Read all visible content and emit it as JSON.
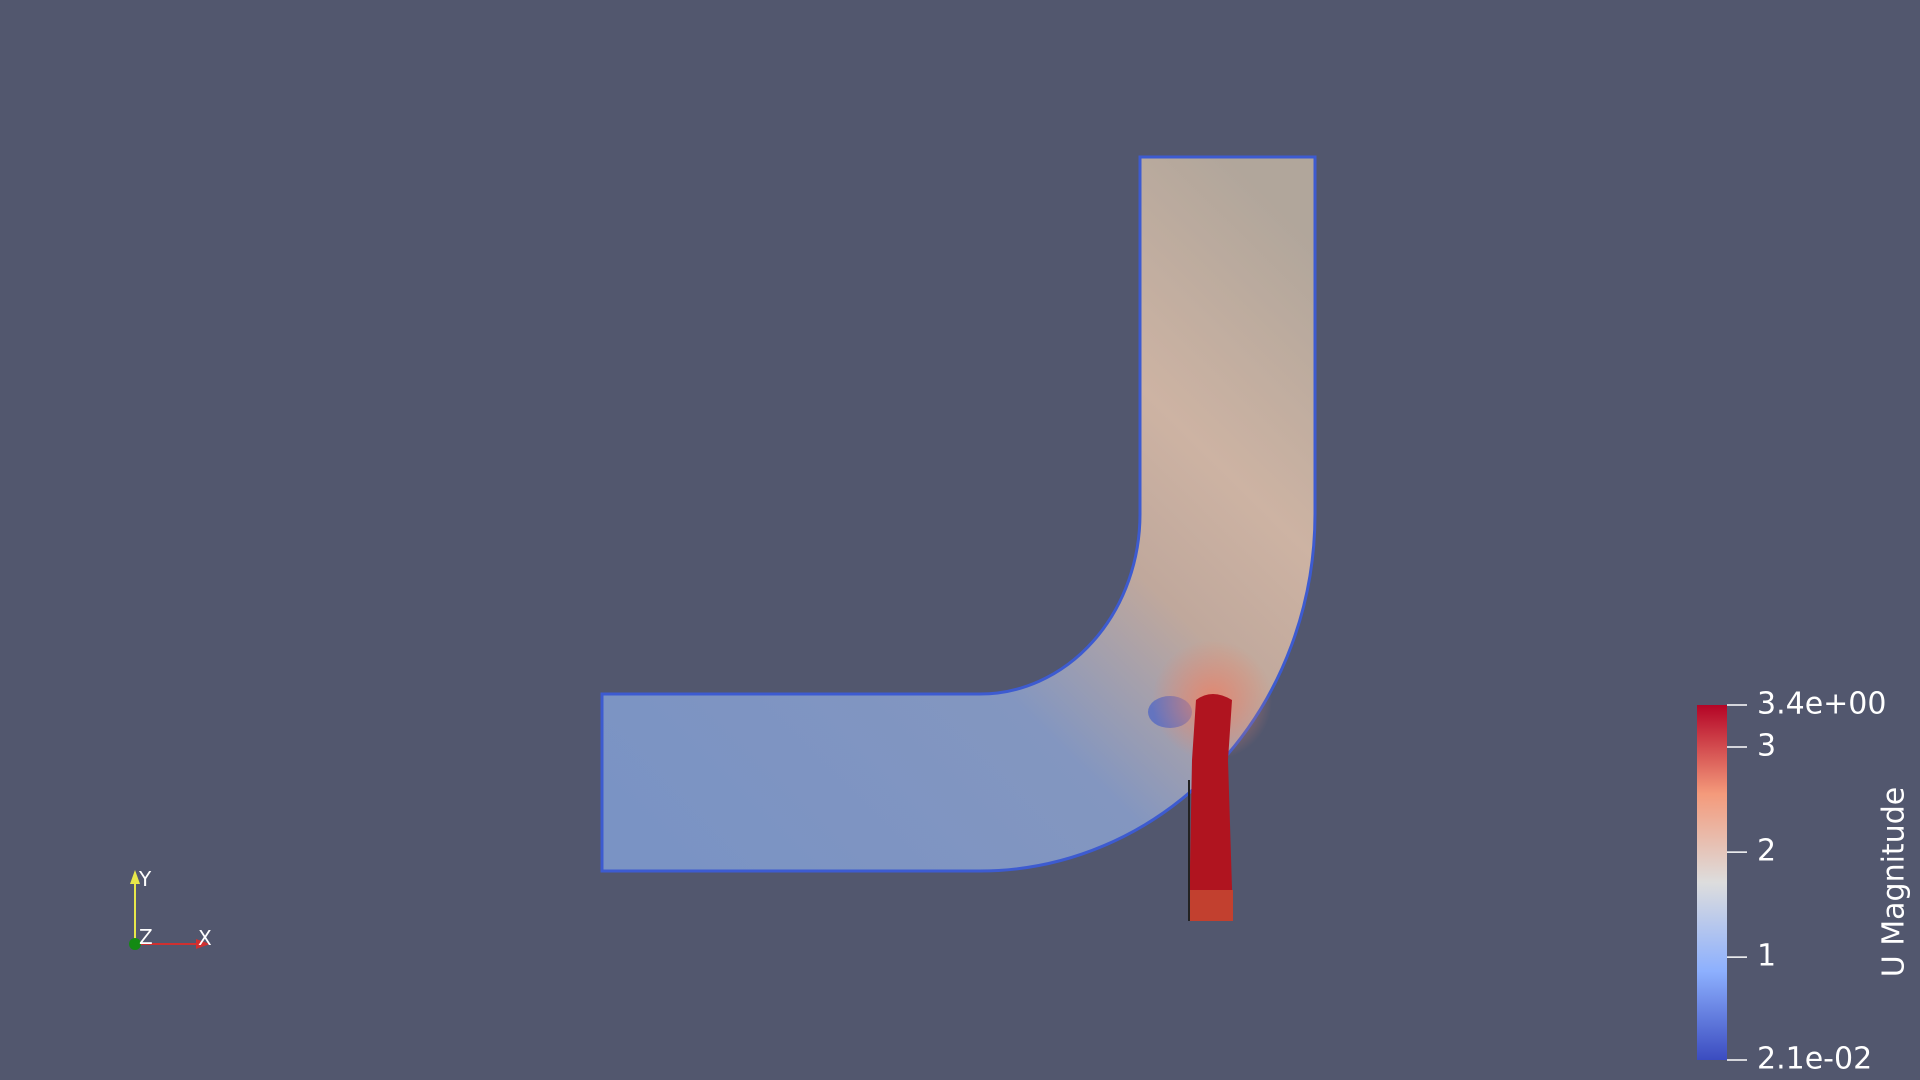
{
  "color_legend": {
    "title": "U Magnitude",
    "range": [
      {
        "value": 0.021,
        "label": "2.1e-02"
      },
      {
        "value": 3.4,
        "label": "3.4e+00"
      }
    ],
    "ticks": [
      1,
      2,
      3
    ]
  },
  "axes_widget": {
    "x": "X",
    "y": "Y",
    "z": "Z"
  }
}
